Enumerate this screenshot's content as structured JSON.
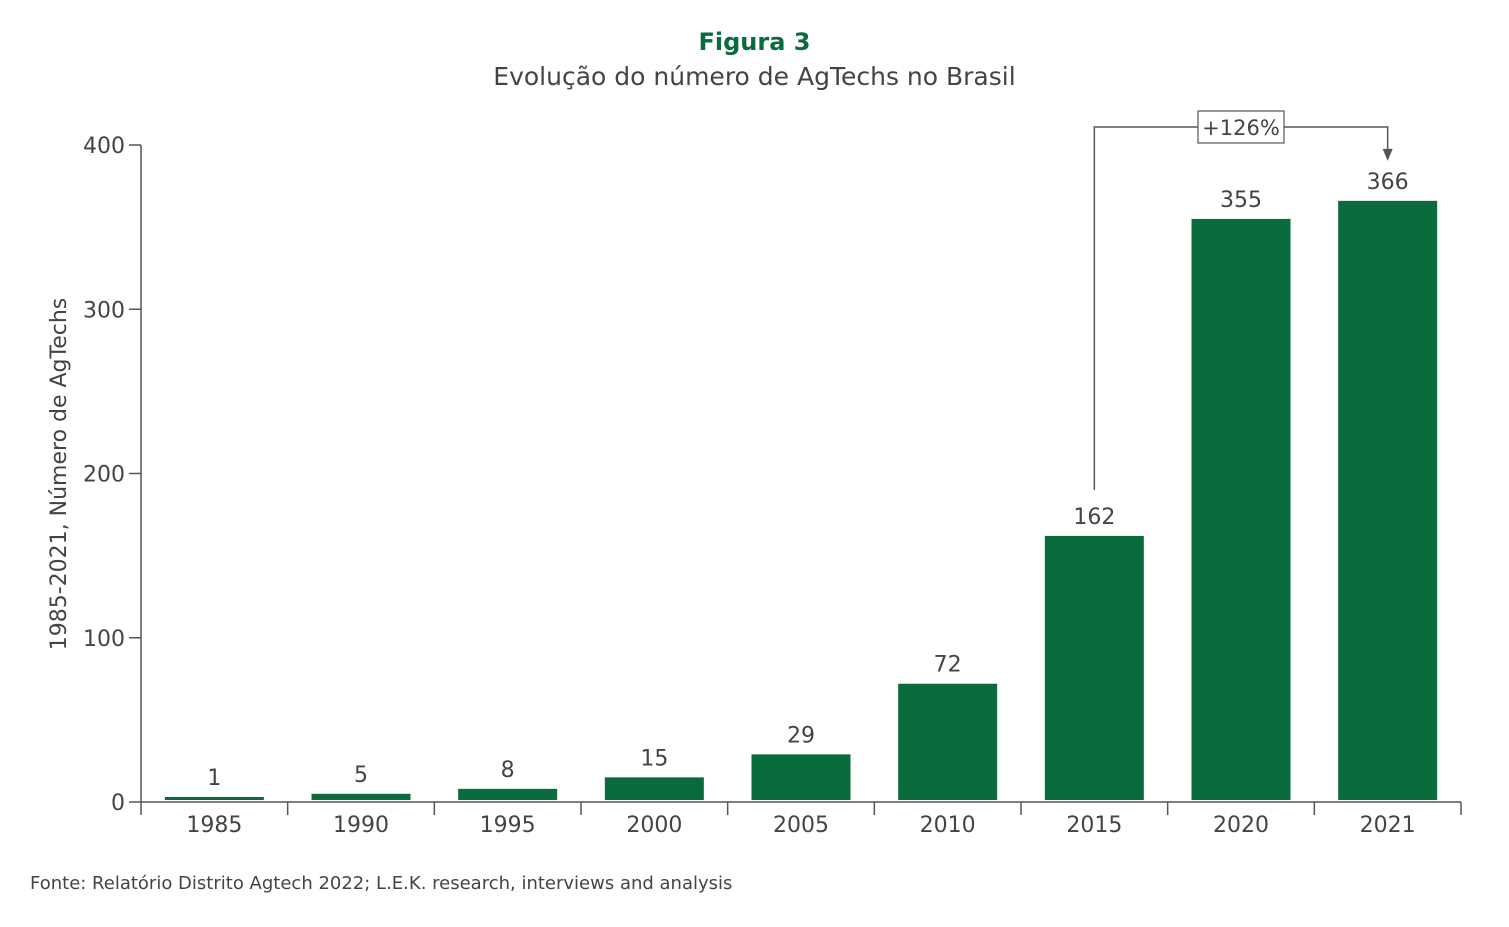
{
  "figure": {
    "label": "Figura 3",
    "title": "Evolução do número de AgTechs no Brasil",
    "source": "Fonte: Relatório Distrito Agtech 2022; L.E.K. research, interviews and analysis"
  },
  "colors": {
    "bar": "#0a6b3c",
    "label_accent": "#0a6b3c",
    "axis": "#555555",
    "text": "#444444"
  },
  "chart_data": {
    "type": "bar",
    "categories": [
      "1985",
      "1990",
      "1995",
      "2000",
      "2005",
      "2010",
      "2015",
      "2020",
      "2021"
    ],
    "values": [
      1,
      5,
      8,
      15,
      29,
      72,
      162,
      355,
      366
    ],
    "data_labels": [
      "1",
      "5",
      "8",
      "15",
      "29",
      "72",
      "162",
      "355",
      "366"
    ],
    "title": "Evolução do número de AgTechs no Brasil",
    "xlabel": "",
    "ylabel": "1985-2021, Número de AgTechs",
    "ylim": [
      0,
      400
    ],
    "yticks": [
      0,
      100,
      200,
      300,
      400
    ],
    "grid": false,
    "legend": "none",
    "annotations": [
      {
        "text": "+126%",
        "from": "2015",
        "to": "2021"
      }
    ]
  }
}
